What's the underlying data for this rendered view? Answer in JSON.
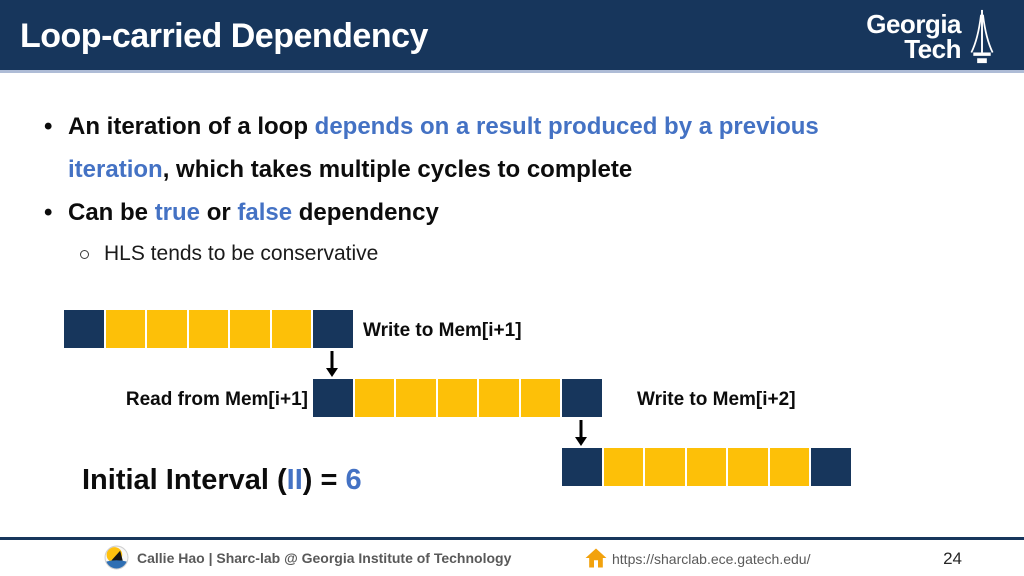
{
  "slide": {
    "title": "Loop-carried Dependency",
    "page_number": "24"
  },
  "logo": {
    "word1": "Georgia",
    "word2": "Tech"
  },
  "markers": {
    "dot": "•"
  },
  "content": {
    "bullet1": {
      "line1_black": "An iteration of a loop ",
      "line1_blue": "depends on a result produced by a previous",
      "line2_blue": "iteration",
      "line2_black": ", which takes multiple cycles to complete"
    },
    "bullet2": {
      "p1": "Can be ",
      "p2": "true",
      "p3": " or ",
      "p4": "false",
      "p5": " dependency"
    },
    "sub_bullet": "HLS tends to be conservative"
  },
  "diagram": {
    "description": "Three pipelined loop iterations of 7 cycles each, offset by 6 cycles",
    "cell_pattern": [
      "navy",
      "gold",
      "gold",
      "gold",
      "gold",
      "gold",
      "navy"
    ],
    "labels": {
      "write1": "Write to Mem[i+1]",
      "read1": "Read from Mem[i+1]",
      "write2": "Write to Mem[i+2]"
    },
    "initial_interval": {
      "p1": "Initial Interval (",
      "p2": "II",
      "p3": ") = ",
      "p4": "6"
    }
  },
  "footer": {
    "author": "Callie Hao | Sharc-lab @ Georgia Institute of Technology",
    "url": "https://sharclab.ece.gatech.edu/"
  },
  "colors": {
    "navy": "#17365c",
    "gold": "#fdc008",
    "accent_blue": "#4472c4",
    "header_underline": "#aebcd6",
    "footer_gray": "#595959"
  }
}
